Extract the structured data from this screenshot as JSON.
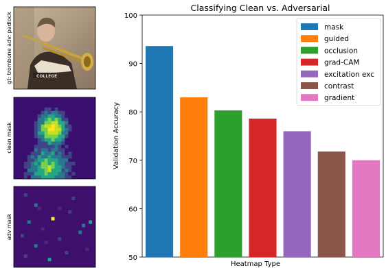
{
  "panels": [
    {
      "label": "gt: trombone adv: padlock",
      "kind": "photo"
    },
    {
      "label": "clean mask",
      "kind": "heatmap"
    },
    {
      "label": "adv mask",
      "kind": "sparse"
    }
  ],
  "chart_data": {
    "type": "bar",
    "title": "Classifying Clean vs. Adversarial",
    "xlabel": "Heatmap Type",
    "ylabel": "Validation Accuracy",
    "ylim": [
      50,
      100
    ],
    "yticks": [
      50,
      60,
      70,
      80,
      90,
      100
    ],
    "grid": false,
    "legend": "top-right",
    "categories": [
      "mask",
      "guided",
      "occlusion",
      "grad-CAM",
      "excitation exc",
      "contrast",
      "gradient"
    ],
    "values": [
      93.6,
      83.0,
      80.3,
      78.6,
      76.0,
      71.8,
      70.0
    ],
    "colors": [
      "#1f77b4",
      "#ff7f0e",
      "#2ca02c",
      "#d62728",
      "#9467bd",
      "#8c564b",
      "#e377c2"
    ]
  }
}
